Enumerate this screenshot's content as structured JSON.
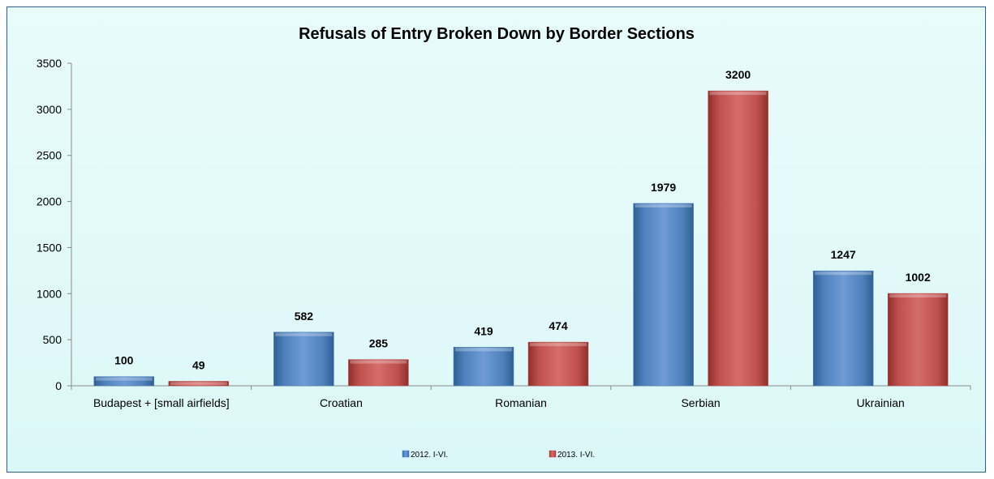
{
  "colors": {
    "series_2012": "#4f81bd",
    "series_2013": "#c0504d"
  },
  "chart_data": {
    "type": "bar",
    "title": "Refusals of Entry Broken Down by Border Sections",
    "xlabel": "",
    "ylabel": "",
    "categories": [
      "Budapest + [small airfields]",
      "Croatian",
      "Romanian",
      "Serbian",
      "Ukrainian"
    ],
    "series": [
      {
        "name": "2012. I-VI.",
        "values": [
          100,
          582,
          419,
          1979,
          1247
        ]
      },
      {
        "name": "2013. I-VI.",
        "values": [
          49,
          285,
          474,
          3200,
          1002
        ]
      }
    ],
    "ylim": [
      0,
      3500
    ],
    "yticks": [
      0,
      500,
      1000,
      1500,
      2000,
      2500,
      3000,
      3500
    ],
    "data_labels": true,
    "legend_position": "bottom",
    "grid": false
  }
}
